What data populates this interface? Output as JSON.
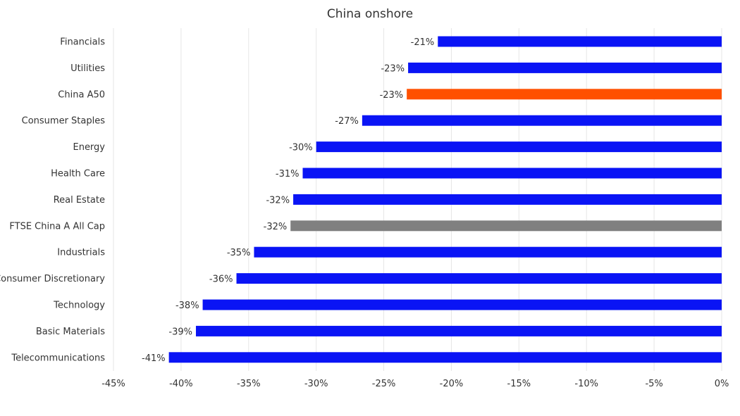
{
  "chart_data": {
    "type": "bar",
    "orientation": "horizontal",
    "title": "China onshore",
    "xlabel": "",
    "ylabel": "",
    "xlim": [
      -45,
      0
    ],
    "x_ticks": [
      -45,
      -40,
      -35,
      -30,
      -25,
      -20,
      -15,
      -10,
      -5,
      0
    ],
    "x_tick_labels": [
      "-45%",
      "-40%",
      "-35%",
      "-30%",
      "-25%",
      "-20%",
      "-15%",
      "-10%",
      "-5%",
      "0%"
    ],
    "grid": true,
    "legend": "none",
    "categories": [
      "Financials",
      "Utilities",
      "China A50",
      "Consumer Staples",
      "Energy",
      "Health Care",
      "Real Estate",
      "FTSE China A All Cap",
      "Industrials",
      "Consumer Discretionary",
      "Technology",
      "Basic Materials",
      "Telecommunications"
    ],
    "values": [
      -21,
      -23.2,
      -23.3,
      -26.6,
      -30,
      -31,
      -31.7,
      -31.9,
      -34.6,
      -35.9,
      -38.4,
      -38.9,
      -40.9
    ],
    "data_labels": [
      "-21%",
      "-23%",
      "-23%",
      "-27%",
      "-30%",
      "-31%",
      "-32%",
      "-32%",
      "-35%",
      "-36%",
      "-38%",
      "-39%",
      "-41%"
    ],
    "bar_colors": [
      "#0a14f5",
      "#0a14f5",
      "#ff5000",
      "#0a14f5",
      "#0a14f5",
      "#0a14f5",
      "#0a14f5",
      "#808080",
      "#0a14f5",
      "#0a14f5",
      "#0a14f5",
      "#0a14f5",
      "#0a14f5"
    ]
  }
}
